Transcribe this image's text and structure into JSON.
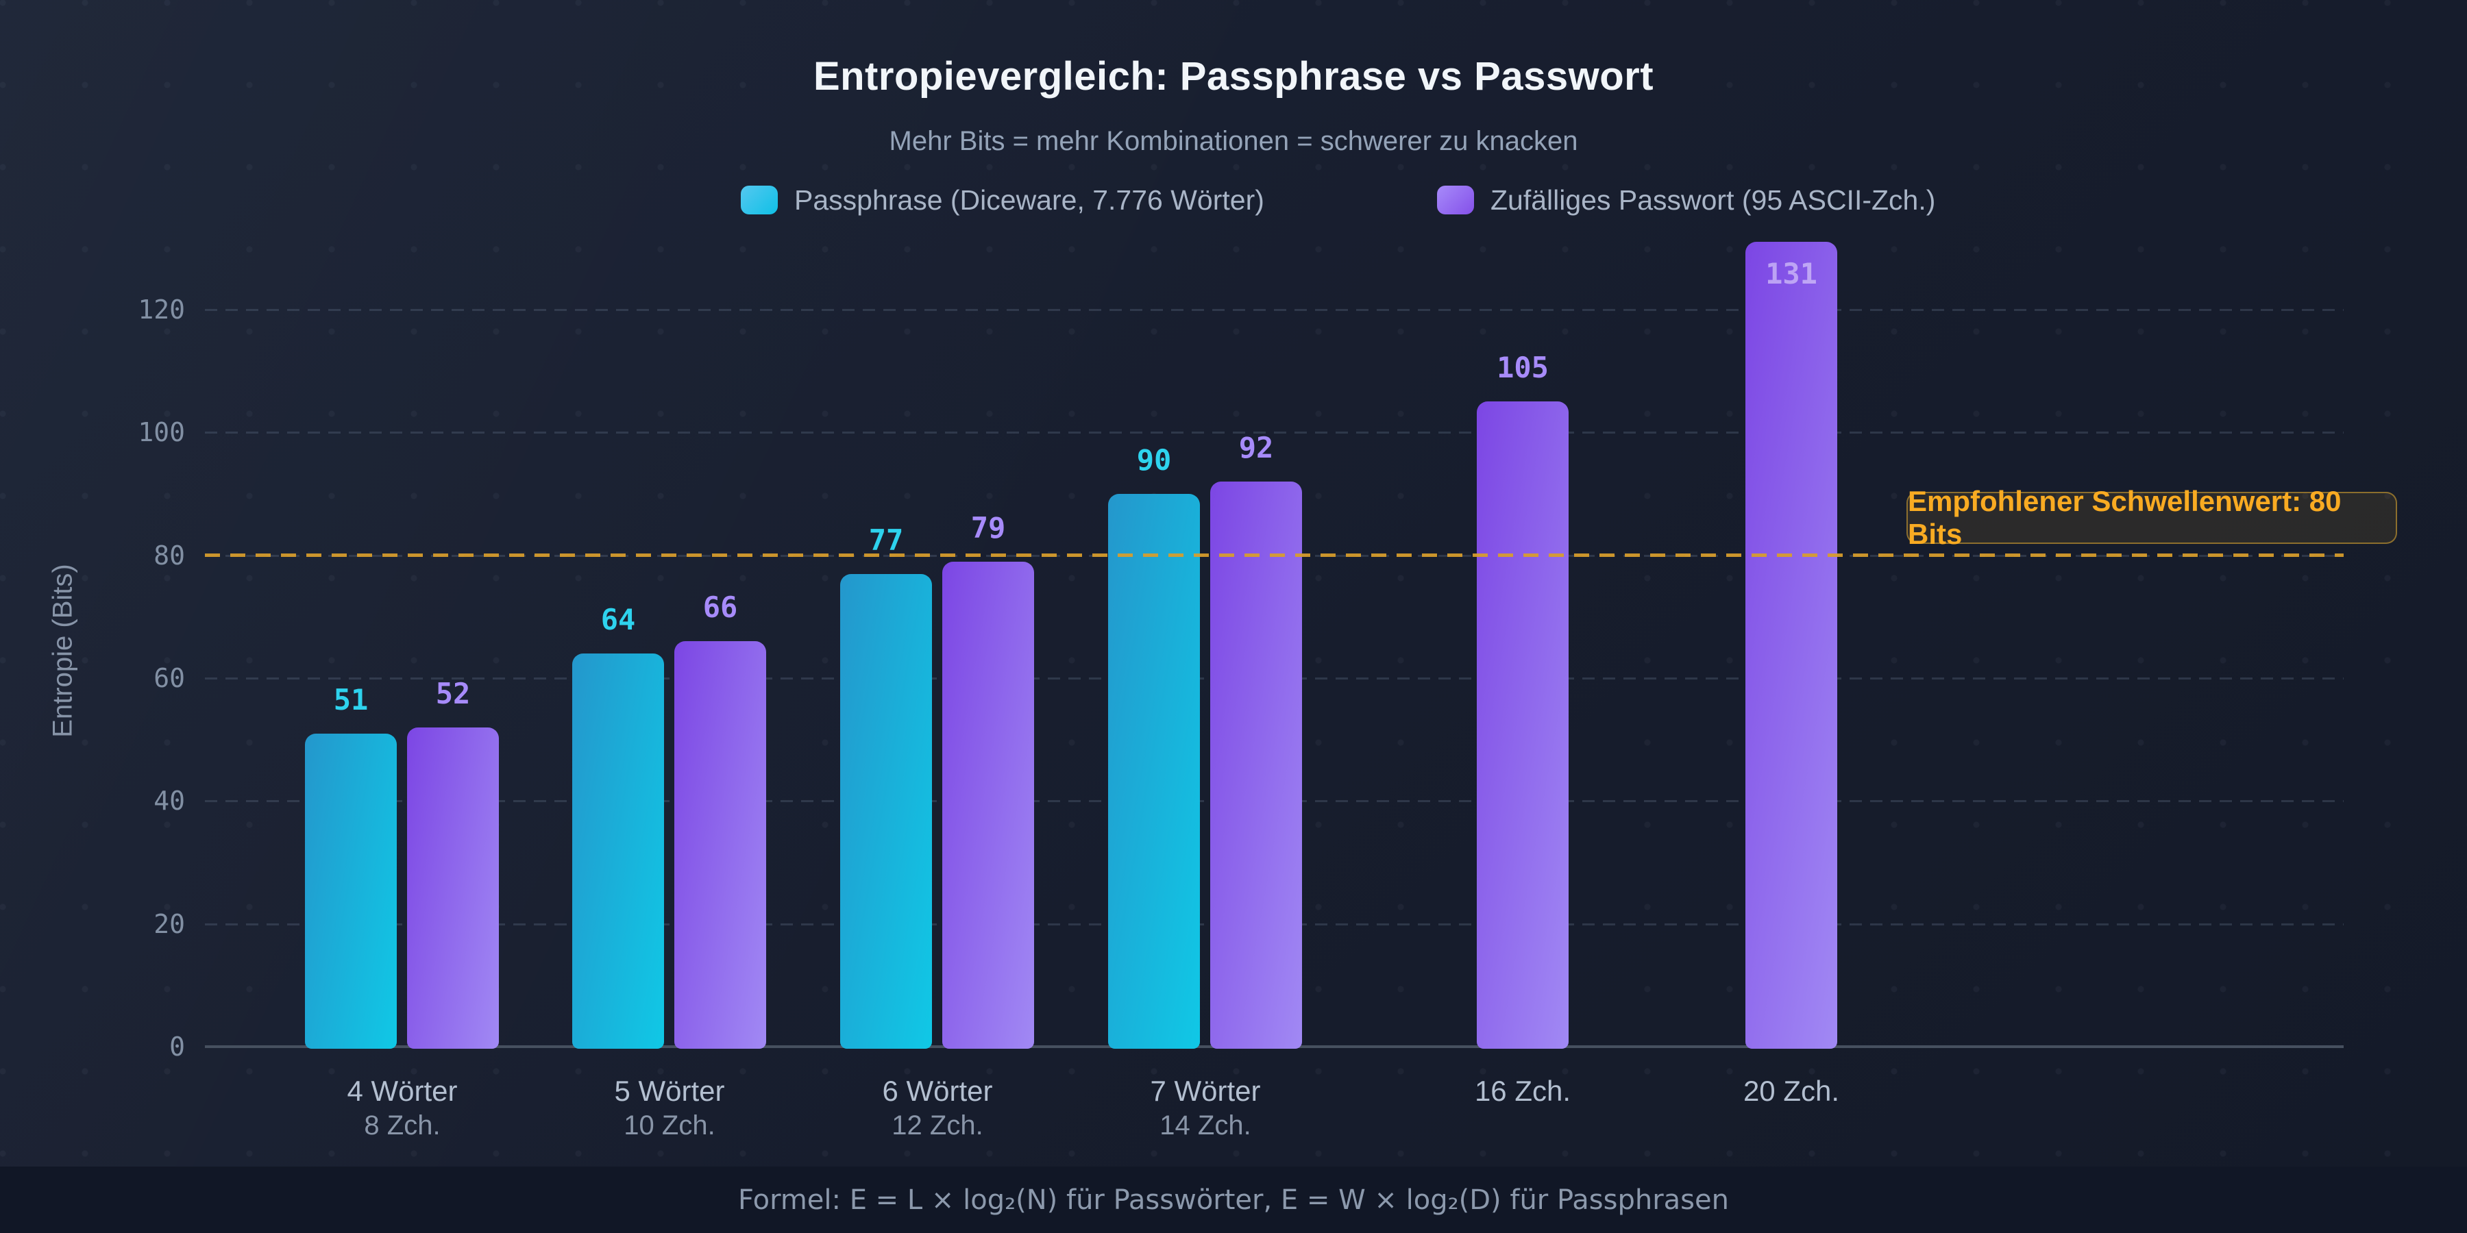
{
  "header": {
    "title": "Entropievergleich: Passphrase vs Passwort",
    "subtitle": "Mehr Bits = mehr Kombinationen = schwerer zu knacken"
  },
  "colors": {
    "passphrase": "#22c8e6",
    "password": "#8b5cf6",
    "threshold": "#d9a02c",
    "background": "#171d2d"
  },
  "chart_data": {
    "type": "bar",
    "title": "Entropievergleich: Passphrase vs Passwort",
    "subtitle": "Mehr Bits = mehr Kombinationen = schwerer zu knacken",
    "ylabel": "Entropie (Bits)",
    "xlabel": "",
    "ylim": [
      0,
      140
    ],
    "yticks": [
      0,
      20,
      40,
      60,
      80,
      100,
      120
    ],
    "grid": "dashed horizontal",
    "legend_position": "top",
    "categories": [
      {
        "line1": "4 Wörter",
        "line2": "8 Zch."
      },
      {
        "line1": "5 Wörter",
        "line2": "10 Zch."
      },
      {
        "line1": "6 Wörter",
        "line2": "12 Zch."
      },
      {
        "line1": "7 Wörter",
        "line2": "14 Zch."
      },
      {
        "line1": "16 Zch.",
        "line2": ""
      },
      {
        "line1": "20 Zch.",
        "line2": ""
      }
    ],
    "series": [
      {
        "name": "Passphrase (Diceware, 7.776 Wörter)",
        "color": "#22c8e6",
        "values": [
          51,
          64,
          77,
          90,
          null,
          null
        ]
      },
      {
        "name": "Zufälliges Passwort (95 ASCII-Zch.)",
        "color": "#8b5cf6",
        "values": [
          52,
          66,
          79,
          92,
          105,
          131
        ]
      }
    ],
    "threshold": {
      "value": 80,
      "label": "Empfohlener Schwellenwert: 80 Bits"
    }
  },
  "legend": {
    "passphrase_label": "Passphrase (Diceware, 7.776 Wörter)",
    "password_label": "Zufälliges Passwort (95 ASCII-Zch.)"
  },
  "threshold_label": "Empfohlener Schwellenwert: 80 Bits",
  "y_axis_title": "Entropie (Bits)",
  "footer": {
    "formula": "Formel: E = L × log₂(N) für Passwörter, E = W × log₂(D) für Passphrasen"
  }
}
